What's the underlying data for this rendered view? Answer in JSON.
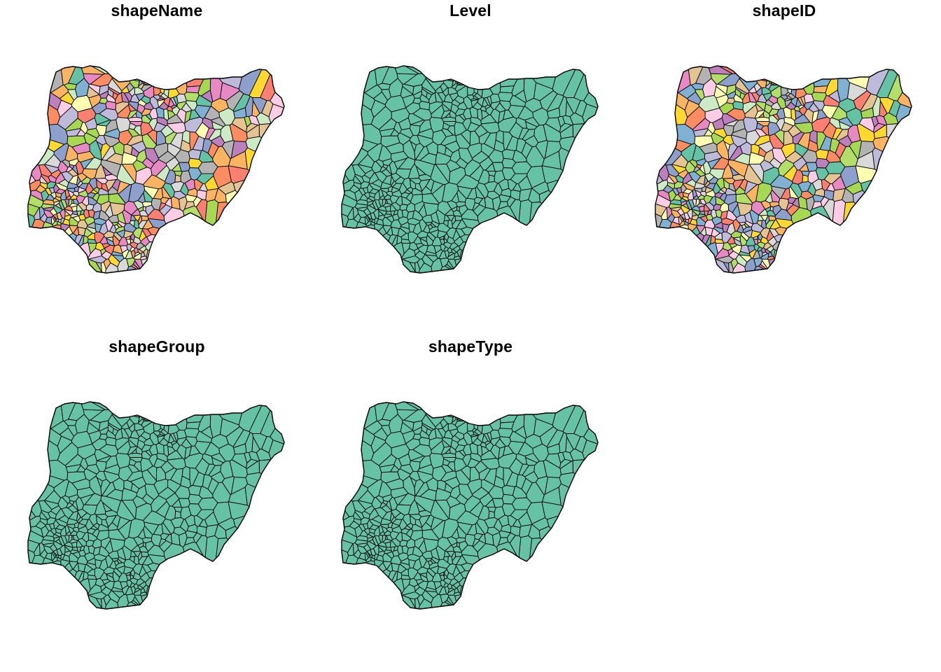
{
  "panels": [
    {
      "title": "shapeName",
      "fill_mode": "categorical"
    },
    {
      "title": "Level",
      "fill_mode": "single"
    },
    {
      "title": "shapeID",
      "fill_mode": "categorical"
    },
    {
      "title": "shapeGroup",
      "fill_mode": "single"
    },
    {
      "title": "shapeType",
      "fill_mode": "single"
    }
  ],
  "colors": {
    "single_fill": "#66C2A5",
    "border": "#000000",
    "background": "#FFFFFF",
    "categorical_palette": [
      "#66C2A5",
      "#FC8D62",
      "#8DA0CB",
      "#E78AC3",
      "#A6D854",
      "#FFD92F",
      "#E5C494",
      "#B3B3B3",
      "#FFFFB3",
      "#BEBADA",
      "#FB8072",
      "#80B1D3",
      "#FDB462",
      "#B3DE69",
      "#FCCDE5",
      "#D9D9D9",
      "#BC80BD",
      "#CCEBC5"
    ]
  }
}
